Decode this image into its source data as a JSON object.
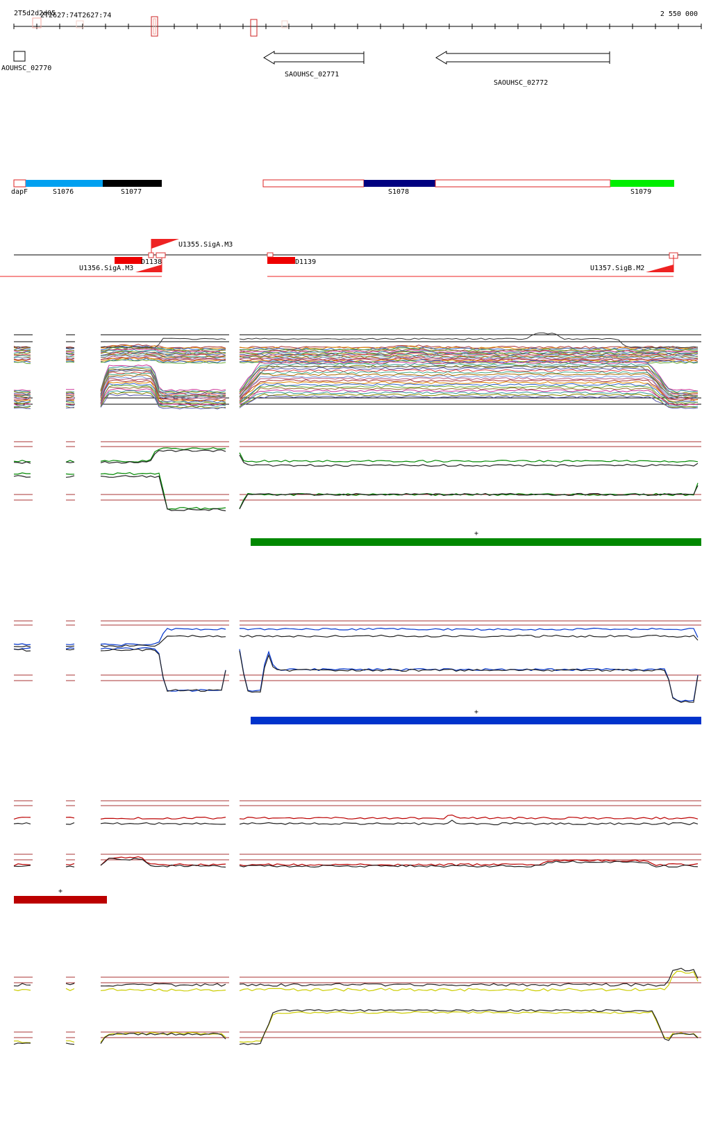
{
  "axis": {
    "start_label_a": "2T5d2d2d05",
    "start_label_b": "2T2627:74T2627:74",
    "end_label": "2 550 000"
  },
  "genes": [
    {
      "id": "gene-saouhsc-02770",
      "label": "AOUHSC_02770",
      "strand": "none"
    },
    {
      "id": "gene-saouhsc-02771",
      "label": "SAOUHSC_02771",
      "strand": "minus"
    },
    {
      "id": "gene-saouhsc-02772",
      "label": "SAOUHSC_02772",
      "strand": "minus"
    }
  ],
  "segments": [
    {
      "label": "dapF",
      "color": "#ffffff"
    },
    {
      "label": "S1076",
      "color": "#00a0f0"
    },
    {
      "label": "S1077",
      "color": "#000000"
    },
    {
      "label": "S1078",
      "color": "#000080"
    },
    {
      "label": "S1079",
      "color": "#00ee00"
    }
  ],
  "regulatory": [
    {
      "label": "U1355.SigA.M3"
    },
    {
      "label": "U1356.SigA.M3"
    },
    {
      "label": "D1138"
    },
    {
      "label": "D1139"
    },
    {
      "label": "U1357.SigB.M2"
    }
  ],
  "tracks": [
    {
      "id": "track-all-conditions",
      "color": "multi"
    },
    {
      "id": "track-green",
      "color": "#008800",
      "bar_label": "+"
    },
    {
      "id": "track-blue",
      "color": "#0033cc",
      "bar_label": "+"
    },
    {
      "id": "track-red",
      "color": "#bb0000",
      "bar_label": "+"
    },
    {
      "id": "track-yellow",
      "color": "#cccc00"
    }
  ]
}
